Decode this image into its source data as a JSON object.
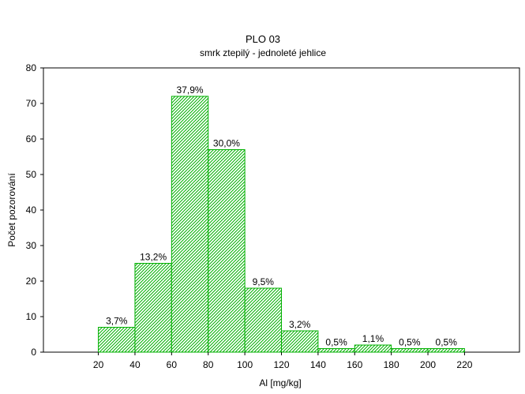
{
  "chart_data": {
    "type": "bar",
    "title": "PLO 03",
    "subtitle": "smrk ztepilý - jednoleté jehlice",
    "xlabel": "Al [mg/kg]",
    "ylabel": "Počet pozorování",
    "bins": [
      {
        "from": 20,
        "to": 40,
        "value": 7,
        "label": "3,7%"
      },
      {
        "from": 40,
        "to": 60,
        "value": 25,
        "label": "13,2%"
      },
      {
        "from": 60,
        "to": 80,
        "value": 72,
        "label": "37,9%"
      },
      {
        "from": 80,
        "to": 100,
        "value": 57,
        "label": "30,0%"
      },
      {
        "from": 100,
        "to": 120,
        "value": 18,
        "label": "9,5%"
      },
      {
        "from": 120,
        "to": 140,
        "value": 6,
        "label": "3,2%"
      },
      {
        "from": 140,
        "to": 160,
        "value": 1,
        "label": "0,5%"
      },
      {
        "from": 160,
        "to": 180,
        "value": 2,
        "label": "1,1%"
      },
      {
        "from": 180,
        "to": 200,
        "value": 1,
        "label": "0,5%"
      },
      {
        "from": 200,
        "to": 220,
        "value": 1,
        "label": "0,5%"
      }
    ],
    "xlim": [
      -10,
      250
    ],
    "ylim": [
      0,
      80
    ],
    "xticks": [
      20,
      40,
      60,
      80,
      100,
      120,
      140,
      160,
      180,
      200,
      220
    ],
    "yticks": [
      0,
      10,
      20,
      30,
      40,
      50,
      60,
      70,
      80
    ],
    "grid": false,
    "bar_color": "#00b000",
    "bar_fill": "#ccf0cc"
  }
}
